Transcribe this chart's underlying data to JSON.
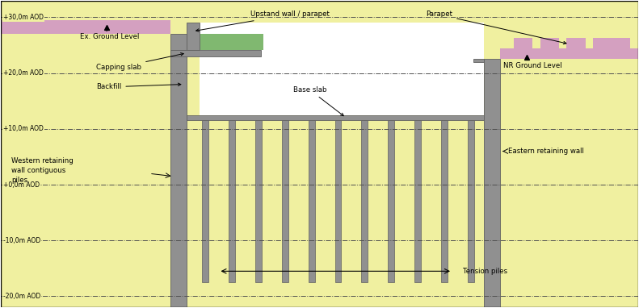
{
  "soil_color": "#f0f0a0",
  "concrete_color": "#909090",
  "concrete_edge": "#606060",
  "pink_color": "#d4a0c0",
  "green_color": "#80b870",
  "white_area": "#ffffff",
  "levels": [
    30,
    20,
    10,
    0,
    -10,
    -20
  ],
  "level_labels": [
    "+30,0m AOD",
    "+20,0m AOD",
    "+10,0m AOD",
    "+0,0m AOD",
    "-10,0m AOD",
    "-20,0m AOD"
  ],
  "x_min": -1.5,
  "x_max": 10.5,
  "y_min": -22,
  "y_max": 33
}
